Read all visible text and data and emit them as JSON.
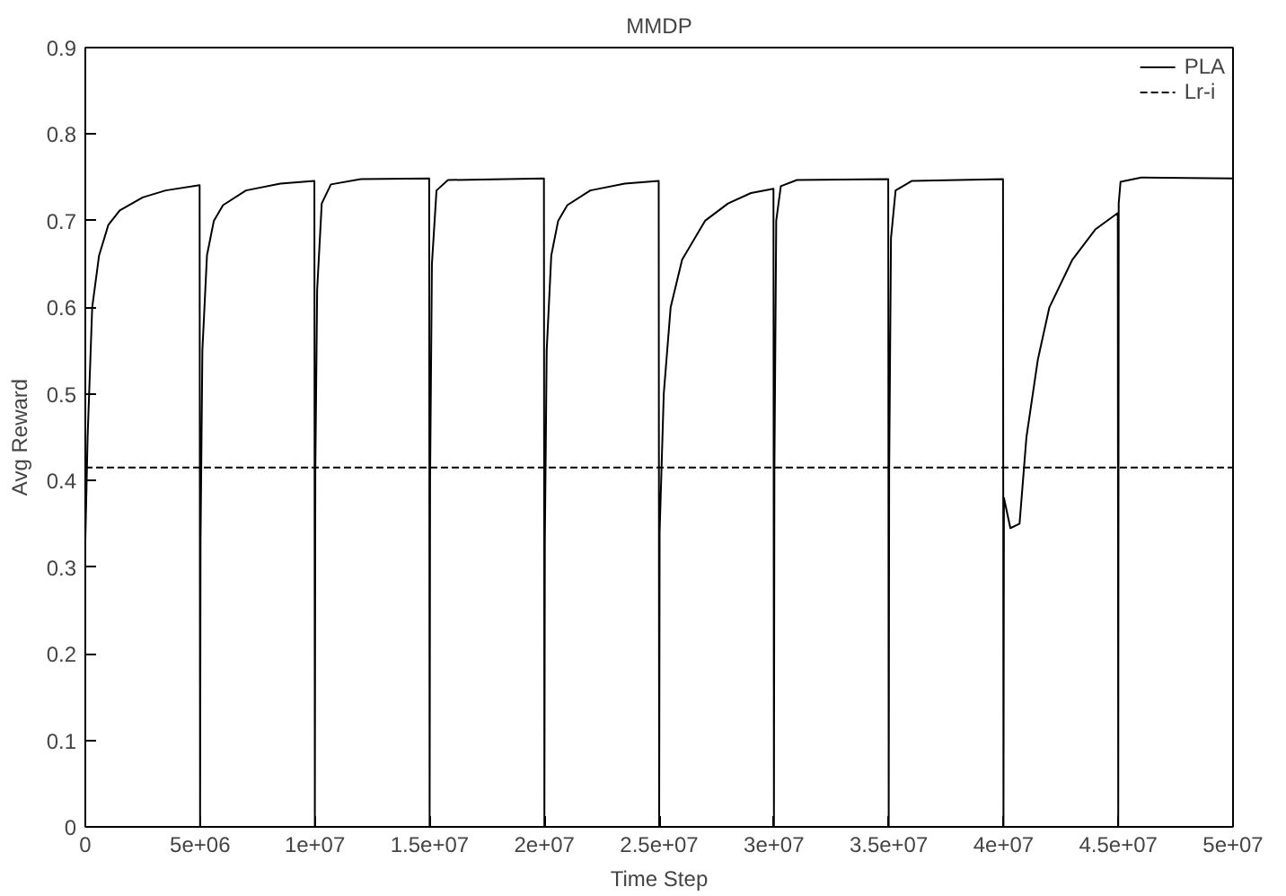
{
  "chart_data": {
    "type": "line",
    "title": "MMDP",
    "xlabel": "Time Step",
    "ylabel": "Avg Reward",
    "xlim": [
      0,
      50000000
    ],
    "ylim": [
      0,
      0.9
    ],
    "xticks": [
      0,
      {
        "value": 5000000,
        "label": "5e+06"
      },
      {
        "value": 10000000,
        "label": "1e+07"
      },
      {
        "value": 15000000,
        "label": "1.5e+07"
      },
      {
        "value": 20000000,
        "label": "2e+07"
      },
      {
        "value": 25000000,
        "label": "2.5e+07"
      },
      {
        "value": 30000000,
        "label": "3e+07"
      },
      {
        "value": 35000000,
        "label": "3.5e+07"
      },
      {
        "value": 40000000,
        "label": "4e+07"
      },
      {
        "value": 45000000,
        "label": "4.5e+07"
      },
      {
        "value": 50000000,
        "label": "5e+07"
      }
    ],
    "yticks": [
      0,
      0.1,
      0.2,
      0.3,
      0.4,
      0.5,
      0.6,
      0.7,
      0.8,
      0.9
    ],
    "grid": false,
    "legend": "top right",
    "marker": "none",
    "series": [
      {
        "name": "PLA",
        "color": "#000000",
        "line_style": "solid",
        "x": [
          0,
          100000,
          300000,
          600000,
          1000000,
          1500000,
          2500000,
          3500000,
          4980000,
          5000000,
          5020000,
          5100000,
          5300000,
          5600000,
          6000000,
          7000000,
          8500000,
          9980000,
          10000000,
          10020000,
          10100000,
          10300000,
          10700000,
          12000000,
          14980000,
          15000000,
          15020000,
          15100000,
          15300000,
          15800000,
          19980000,
          20000000,
          20020000,
          20100000,
          20300000,
          20600000,
          21000000,
          22000000,
          23500000,
          24980000,
          25000000,
          25020000,
          25200000,
          25500000,
          26000000,
          27000000,
          28000000,
          29000000,
          29980000,
          30000000,
          30020000,
          30100000,
          30300000,
          31000000,
          34980000,
          35000000,
          35020000,
          35100000,
          35300000,
          36000000,
          39980000,
          40000000,
          40020000,
          40300000,
          40700000,
          41000000,
          41500000,
          42000000,
          43000000,
          44000000,
          44980000,
          45000000,
          45020000,
          45100000,
          46000000,
          50000000
        ],
        "values": [
          0.33,
          0.45,
          0.6,
          0.66,
          0.695,
          0.712,
          0.727,
          0.735,
          0.741,
          0,
          0.33,
          0.55,
          0.66,
          0.7,
          0.718,
          0.735,
          0.743,
          0.746,
          0,
          0.41,
          0.62,
          0.72,
          0.742,
          0.748,
          0.749,
          0,
          0.4,
          0.65,
          0.735,
          0.747,
          0.749,
          0,
          0.33,
          0.55,
          0.66,
          0.7,
          0.718,
          0.735,
          0.743,
          0.746,
          0,
          0.34,
          0.5,
          0.6,
          0.655,
          0.7,
          0.72,
          0.732,
          0.737,
          0,
          0.41,
          0.7,
          0.74,
          0.747,
          0.748,
          0,
          0.41,
          0.68,
          0.735,
          0.746,
          0.748,
          0,
          0.38,
          0.345,
          0.35,
          0.45,
          0.54,
          0.6,
          0.655,
          0.69,
          0.709,
          0,
          0.72,
          0.745,
          0.75,
          0.749
        ]
      },
      {
        "name": "Lr-i",
        "color": "#000000",
        "line_style": "dashed",
        "x": [
          0,
          50000000
        ],
        "values": [
          0.415,
          0.415
        ]
      }
    ]
  }
}
